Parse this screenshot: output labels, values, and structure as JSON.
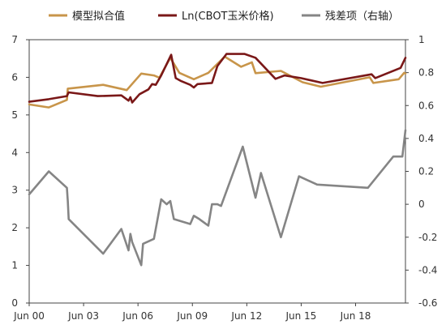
{
  "chart_data": {
    "type": "line",
    "title": "",
    "xlabel": "",
    "ylabel": "",
    "legend_position": "top",
    "x_ticks": [
      "Jun 00",
      "Jun 03",
      "Jun 06",
      "Jun 09",
      "Jun 12",
      "Jun 15",
      "Jun 18"
    ],
    "x_tick_years": [
      2000.42,
      2003.42,
      2006.42,
      2009.42,
      2012.42,
      2015.42,
      2018.42
    ],
    "xlim": [
      2000.42,
      2021.17
    ],
    "y_left": {
      "ylim": [
        0,
        7
      ],
      "ticks": [
        "0",
        "1",
        "2",
        "3",
        "4",
        "5",
        "6",
        "7"
      ]
    },
    "y_right": {
      "ylim": [
        -0.6,
        1.0
      ],
      "ticks": [
        "-0.6",
        "-0.4",
        "-0.2",
        "0",
        "0.2",
        "0.4",
        "0.6",
        "0.8",
        "1"
      ]
    },
    "series": [
      {
        "name": "模型拟合值",
        "axis": "left",
        "color": "#c8954a",
        "points": [
          [
            2000.42,
            5.28
          ],
          [
            2001.5,
            5.2
          ],
          [
            2002.5,
            5.4
          ],
          [
            2002.55,
            5.7
          ],
          [
            2004.5,
            5.8
          ],
          [
            2005.8,
            5.66
          ],
          [
            2006.6,
            6.1
          ],
          [
            2007.3,
            6.05
          ],
          [
            2007.6,
            5.99
          ],
          [
            2008.2,
            6.52
          ],
          [
            2008.7,
            6.12
          ],
          [
            2009.5,
            5.95
          ],
          [
            2010.3,
            6.12
          ],
          [
            2011.2,
            6.55
          ],
          [
            2012.1,
            6.28
          ],
          [
            2012.7,
            6.4
          ],
          [
            2012.9,
            6.11
          ],
          [
            2014.3,
            6.17
          ],
          [
            2015.5,
            5.87
          ],
          [
            2016.5,
            5.75
          ],
          [
            2019.2,
            6.0
          ],
          [
            2019.4,
            5.85
          ],
          [
            2020.8,
            5.95
          ],
          [
            2021.1,
            6.12
          ],
          [
            2021.17,
            6.1
          ]
        ]
      },
      {
        "name": "Ln(CBOT玉米价格)",
        "axis": "left",
        "color": "#7a1818",
        "points": [
          [
            2000.42,
            5.35
          ],
          [
            2001.5,
            5.42
          ],
          [
            2002.5,
            5.5
          ],
          [
            2002.6,
            5.6
          ],
          [
            2004.2,
            5.5
          ],
          [
            2005.5,
            5.52
          ],
          [
            2005.9,
            5.38
          ],
          [
            2006.0,
            5.47
          ],
          [
            2006.1,
            5.33
          ],
          [
            2006.5,
            5.55
          ],
          [
            2007.0,
            5.68
          ],
          [
            2007.2,
            5.82
          ],
          [
            2007.4,
            5.8
          ],
          [
            2007.7,
            6.05
          ],
          [
            2008.25,
            6.6
          ],
          [
            2008.5,
            5.98
          ],
          [
            2008.8,
            5.9
          ],
          [
            2009.3,
            5.8
          ],
          [
            2009.5,
            5.73
          ],
          [
            2009.7,
            5.82
          ],
          [
            2010.5,
            5.85
          ],
          [
            2010.8,
            6.3
          ],
          [
            2011.3,
            6.62
          ],
          [
            2012.3,
            6.62
          ],
          [
            2012.9,
            6.52
          ],
          [
            2014.0,
            5.96
          ],
          [
            2014.5,
            6.05
          ],
          [
            2015.4,
            5.98
          ],
          [
            2016.6,
            5.85
          ],
          [
            2019.3,
            6.08
          ],
          [
            2019.5,
            5.98
          ],
          [
            2020.9,
            6.25
          ],
          [
            2021.17,
            6.52
          ]
        ]
      },
      {
        "name": "残差项（右轴）",
        "axis": "right",
        "color": "#858585",
        "points": [
          [
            2000.42,
            0.06
          ],
          [
            2001.5,
            0.2
          ],
          [
            2002.5,
            0.1
          ],
          [
            2002.55,
            0.02
          ],
          [
            2002.6,
            -0.09
          ],
          [
            2004.5,
            -0.3
          ],
          [
            2005.5,
            -0.15
          ],
          [
            2005.9,
            -0.28
          ],
          [
            2006.0,
            -0.18
          ],
          [
            2006.1,
            -0.23
          ],
          [
            2006.6,
            -0.37
          ],
          [
            2006.7,
            -0.24
          ],
          [
            2007.3,
            -0.21
          ],
          [
            2007.7,
            0.03
          ],
          [
            2008.0,
            0.0
          ],
          [
            2008.2,
            0.02
          ],
          [
            2008.4,
            -0.09
          ],
          [
            2009.3,
            -0.12
          ],
          [
            2009.5,
            -0.07
          ],
          [
            2009.8,
            -0.09
          ],
          [
            2010.3,
            -0.13
          ],
          [
            2010.5,
            0.0
          ],
          [
            2010.8,
            0.0
          ],
          [
            2011.0,
            -0.01
          ],
          [
            2012.2,
            0.35
          ],
          [
            2012.9,
            0.04
          ],
          [
            2013.2,
            0.19
          ],
          [
            2014.3,
            -0.2
          ],
          [
            2015.3,
            0.17
          ],
          [
            2016.3,
            0.12
          ],
          [
            2019.1,
            0.1
          ],
          [
            2020.5,
            0.29
          ],
          [
            2021.0,
            0.29
          ],
          [
            2021.17,
            0.45
          ]
        ]
      }
    ]
  }
}
